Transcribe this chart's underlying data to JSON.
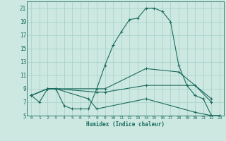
{
  "xlabel": "Humidex (Indice chaleur)",
  "bg_color": "#cce8e0",
  "grid_color": "#aad4ca",
  "line_color": "#1a6b5e",
  "xlim": [
    -0.5,
    23.5
  ],
  "ylim": [
    5,
    22
  ],
  "yticks": [
    5,
    7,
    9,
    11,
    13,
    15,
    17,
    19,
    21
  ],
  "xticks": [
    0,
    1,
    2,
    3,
    4,
    5,
    6,
    7,
    8,
    9,
    10,
    11,
    12,
    13,
    14,
    15,
    16,
    17,
    18,
    19,
    20,
    21,
    22,
    23
  ],
  "lines": [
    {
      "x": [
        0,
        1,
        2,
        3,
        4,
        5,
        6,
        7,
        8,
        9,
        10,
        11,
        12,
        13,
        14,
        15,
        16,
        17,
        18,
        19,
        20,
        21,
        22,
        23
      ],
      "y": [
        8,
        7,
        9,
        9,
        6.5,
        6,
        6,
        6,
        9,
        12.5,
        15.5,
        17.5,
        19.3,
        19.5,
        21,
        21,
        20.5,
        19,
        12.5,
        9.5,
        8,
        7.5,
        5,
        5
      ]
    },
    {
      "x": [
        0,
        2,
        3,
        9,
        14,
        18,
        22
      ],
      "y": [
        8,
        9,
        9,
        9,
        12,
        11.5,
        7.5
      ]
    },
    {
      "x": [
        0,
        2,
        3,
        8,
        9,
        14,
        20,
        22
      ],
      "y": [
        8,
        9,
        9,
        8.5,
        8.5,
        9.5,
        9.5,
        7
      ]
    },
    {
      "x": [
        0,
        2,
        3,
        7,
        8,
        14,
        20,
        22,
        23
      ],
      "y": [
        8,
        9,
        9,
        7.5,
        6,
        7.5,
        5.5,
        5,
        5
      ]
    }
  ]
}
